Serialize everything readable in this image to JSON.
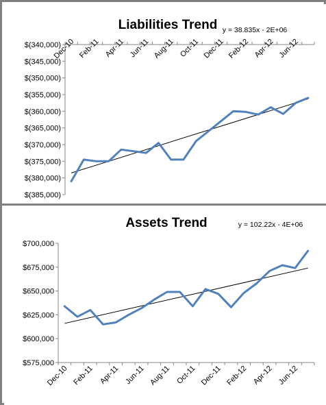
{
  "chart_data": [
    {
      "type": "line",
      "title": "Liabilities Trend",
      "trendline_equation": "y = 38.835x - 2E+06",
      "xlabel": "",
      "ylabel": "",
      "categories": [
        "Dec-10",
        "Jan-11",
        "Feb-11",
        "Mar-11",
        "Apr-11",
        "May-11",
        "Jun-11",
        "Jul-11",
        "Aug-11",
        "Sep-11",
        "Oct-11",
        "Nov-11",
        "Dec-11",
        "Jan-12",
        "Feb-12",
        "Mar-12",
        "Apr-12",
        "May-12",
        "Jun-12",
        "Jul-12"
      ],
      "x_tick_labels": [
        "Dec-10",
        "Feb-11",
        "Apr-11",
        "Jun-11",
        "Aug-11",
        "Oct-11",
        "Dec-11",
        "Feb-12",
        "Apr-12",
        "Jun-12"
      ],
      "y_tick_labels": [
        "$(340,000)",
        "$(345,000)",
        "$(350,000)",
        "$(355,000)",
        "$(360,000)",
        "$(365,000)",
        "$(370,000)",
        "$(375,000)",
        "$(380,000)",
        "$(385,000)"
      ],
      "ylim": [
        -385000,
        -340000
      ],
      "x_axis_position": "top",
      "series": [
        {
          "values": [
            -381000,
            -374500,
            -375000,
            -375000,
            -371500,
            -372000,
            -372500,
            -369500,
            -374500,
            -374500,
            -369000,
            -366000,
            -363000,
            -360000,
            -360200,
            -361000,
            -358800,
            -360800,
            -357500,
            -356000
          ]
        }
      ],
      "trendline": {
        "start": -378500,
        "end": -356300
      },
      "colors": {
        "series": "#4f81bd",
        "trendline": "#000000"
      },
      "grid": false
    },
    {
      "type": "line",
      "title": "Assets Trend",
      "trendline_equation": "y = 102.22x - 4E+06",
      "xlabel": "",
      "ylabel": "",
      "categories": [
        "Dec-10",
        "Jan-11",
        "Feb-11",
        "Mar-11",
        "Apr-11",
        "May-11",
        "Jun-11",
        "Jul-11",
        "Aug-11",
        "Sep-11",
        "Oct-11",
        "Nov-11",
        "Dec-11",
        "Jan-12",
        "Feb-12",
        "Mar-12",
        "Apr-12",
        "May-12",
        "Jun-12",
        "Jul-12"
      ],
      "x_tick_labels": [
        "Dec-10",
        "Feb-11",
        "Apr-11",
        "Jun-11",
        "Aug-11",
        "Oct-11",
        "Dec-11",
        "Feb-12",
        "Apr-12",
        "Jun-12"
      ],
      "y_tick_labels": [
        "$700,000",
        "$675,000",
        "$650,000",
        "$625,000",
        "$600,000",
        "$575,000"
      ],
      "ylim": [
        575000,
        700000
      ],
      "x_axis_position": "bottom",
      "series": [
        {
          "values": [
            634000,
            623000,
            630000,
            615000,
            617000,
            625000,
            632000,
            641000,
            649000,
            649000,
            634000,
            652000,
            647000,
            633000,
            648000,
            658000,
            671000,
            677000,
            674000,
            692000
          ]
        }
      ],
      "trendline": {
        "start": 616000,
        "end": 674000
      },
      "colors": {
        "series": "#4f81bd",
        "trendline": "#000000"
      },
      "grid": false
    }
  ]
}
